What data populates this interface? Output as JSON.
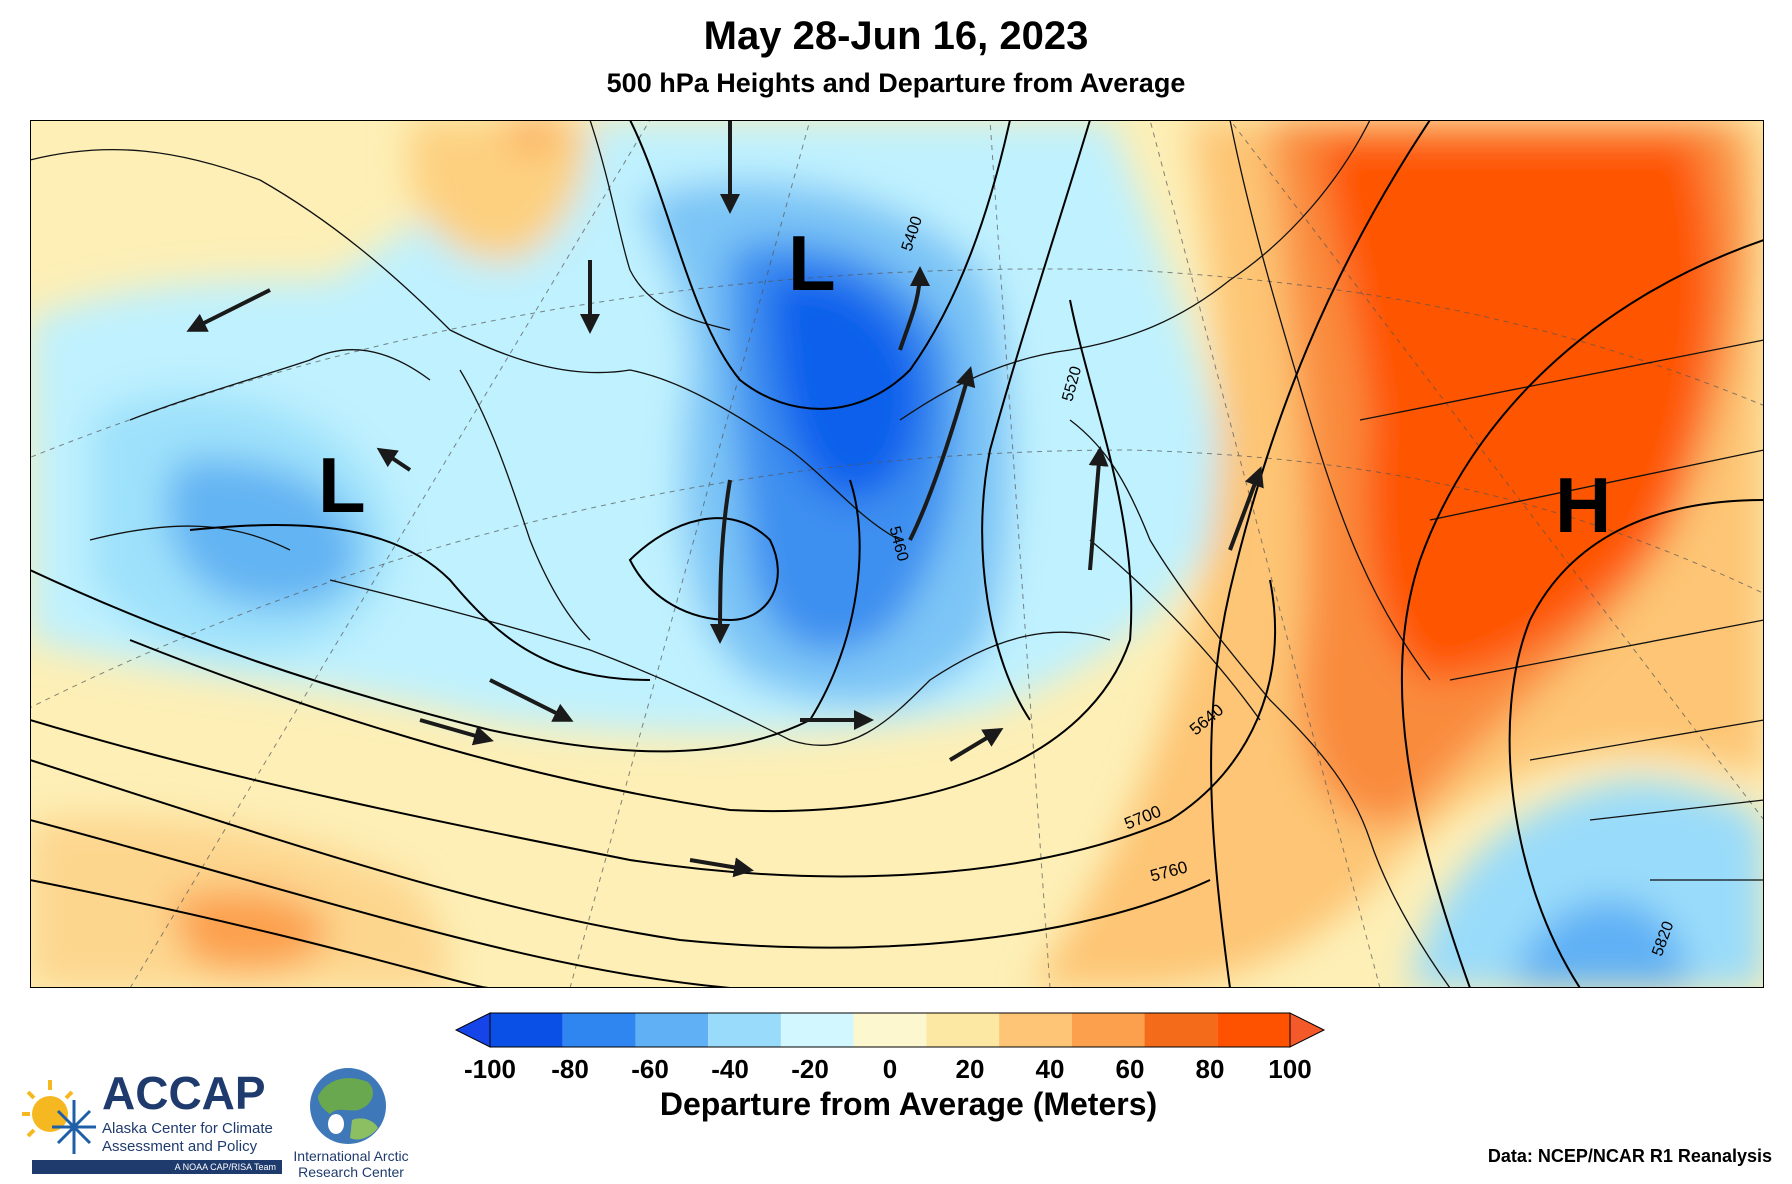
{
  "title": "May 28-Jun 16, 2023",
  "subtitle": "500 hPa Heights and Departure from Average",
  "map": {
    "pressure_labels": [
      "L",
      "L",
      "H"
    ],
    "contour_labels": [
      "5400",
      "5460",
      "5520",
      "5640",
      "5700",
      "5760",
      "5820"
    ]
  },
  "colorbar": {
    "title": "Departure from Average (Meters)",
    "ticks": [
      "-100",
      "-80",
      "-60",
      "-40",
      "-20",
      "0",
      "20",
      "40",
      "60",
      "80",
      "100"
    ],
    "colors": [
      "#0a4fe6",
      "#2f86f0",
      "#5fb0f5",
      "#99dbfa",
      "#d2f7ff",
      "#fdf7cf",
      "#fde8a3",
      "#fdc575",
      "#fca04d",
      "#f46b1a",
      "#fe5200"
    ],
    "under_color": "#1545e8",
    "over_color": "#f4592a"
  },
  "logos": {
    "accap_name": "ACCAP",
    "accap_line1": "Alaska Center for Climate",
    "accap_line2": "Assessment and Policy",
    "accap_tag": "A NOAA CAP/RISA Team",
    "iarc_line1": "International Arctic",
    "iarc_line2": "Research Center"
  },
  "credit": "Data: NCEP/NCAR R1 Reanalysis"
}
